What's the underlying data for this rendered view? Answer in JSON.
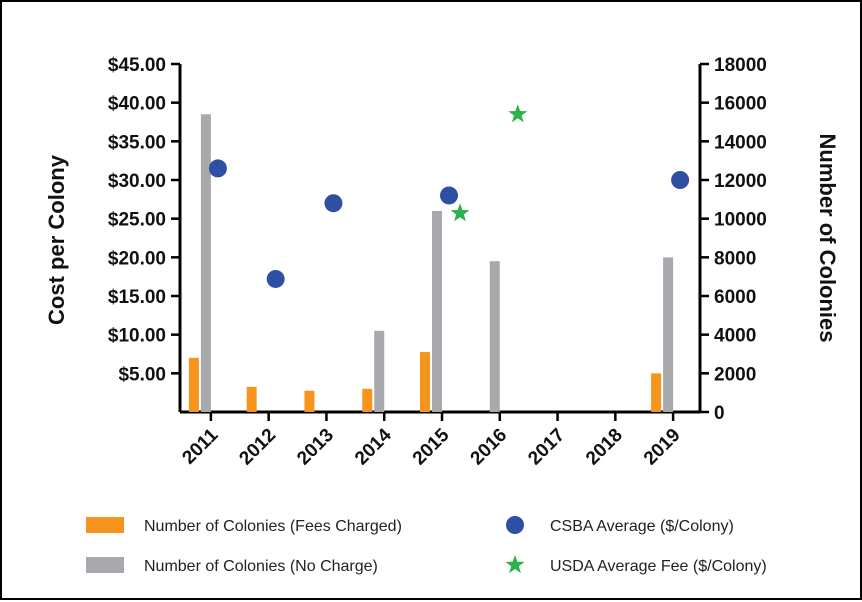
{
  "chart_data": {
    "type": "bar",
    "categories": [
      "2011",
      "2012",
      "2013",
      "2014",
      "2015",
      "2016",
      "2017",
      "2018",
      "2019"
    ],
    "y_left": {
      "label": "Cost per Colony",
      "range": [
        0,
        45
      ],
      "tick_labels": [
        "$5.00",
        "$10.00",
        "$15.00",
        "$20.00",
        "$25.00",
        "$30.00",
        "$35.00",
        "$40.00",
        "$45.00"
      ],
      "tick_values": [
        5,
        10,
        15,
        20,
        25,
        30,
        35,
        40,
        45
      ]
    },
    "y_right": {
      "label": "Number of Colonies",
      "range": [
        0,
        18000
      ],
      "tick_labels": [
        "0",
        "2000",
        "4000",
        "6000",
        "8000",
        "10000",
        "12000",
        "14000",
        "16000",
        "18000"
      ],
      "tick_values": [
        0,
        2000,
        4000,
        6000,
        8000,
        10000,
        12000,
        14000,
        16000,
        18000
      ]
    },
    "series": [
      {
        "name": "Number of Colonies (Fees Charged)",
        "kind": "bar",
        "axis": "right",
        "color": "#f7941d",
        "values": [
          2800,
          1300,
          1100,
          1200,
          3100,
          null,
          null,
          null,
          2000
        ]
      },
      {
        "name": "Number of Colonies (No Charge)",
        "kind": "bar",
        "axis": "right",
        "color": "#a7a9ac",
        "values": [
          15400,
          null,
          null,
          4200,
          10400,
          7800,
          null,
          null,
          8000
        ]
      },
      {
        "name": "CSBA Average ($/Colony)",
        "kind": "scatter",
        "marker": "circle",
        "axis": "left",
        "color": "#2e4fa3",
        "values": [
          31.5,
          17.2,
          27.0,
          null,
          28.0,
          null,
          null,
          null,
          30.0
        ]
      },
      {
        "name": "USDA Average Fee ($/Colony)",
        "kind": "scatter",
        "marker": "star",
        "axis": "left",
        "color": "#2ab34a",
        "values": [
          null,
          null,
          null,
          null,
          25.7,
          38.5,
          null,
          null,
          null
        ]
      }
    ],
    "legend_position": "bottom"
  }
}
